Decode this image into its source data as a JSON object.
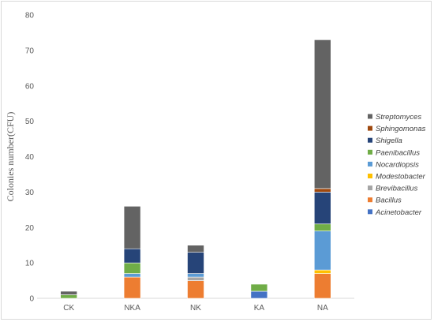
{
  "chart_data": {
    "type": "bar",
    "stacked": true,
    "title": "",
    "xlabel": "",
    "ylabel": "Colonies number(CFU)",
    "ylim": [
      0,
      80
    ],
    "yticks": [
      0,
      10,
      20,
      30,
      40,
      50,
      60,
      70,
      80
    ],
    "grid": false,
    "legend_position": "right",
    "categories": [
      "CK",
      "NKA",
      "NK",
      "KA",
      "NA"
    ],
    "series": [
      {
        "name": "Acinetobacter",
        "color": "#4472c4",
        "values": [
          0,
          0,
          0,
          2,
          0
        ]
      },
      {
        "name": "Bacillus",
        "color": "#ed7d31",
        "values": [
          0,
          6,
          5,
          0,
          7
        ]
      },
      {
        "name": "Brevibacillus",
        "color": "#a5a5a5",
        "values": [
          0,
          0,
          1,
          0,
          0
        ]
      },
      {
        "name": "Modestobacter",
        "color": "#ffc000",
        "values": [
          0,
          0,
          0,
          0,
          1
        ]
      },
      {
        "name": "Nocardiopsis",
        "color": "#5b9bd5",
        "values": [
          0,
          1,
          1,
          0,
          11
        ]
      },
      {
        "name": "Paenibacillus",
        "color": "#70ad47",
        "values": [
          1,
          3,
          0,
          2,
          2
        ]
      },
      {
        "name": "Shigella",
        "color": "#264478",
        "values": [
          0,
          4,
          6,
          0,
          9
        ]
      },
      {
        "name": "Sphingomonas",
        "color": "#9e480e",
        "values": [
          0,
          0,
          0,
          0,
          1
        ]
      },
      {
        "name": "Streptomyces",
        "color": "#636363",
        "values": [
          1,
          12,
          2,
          0,
          42
        ]
      }
    ]
  }
}
